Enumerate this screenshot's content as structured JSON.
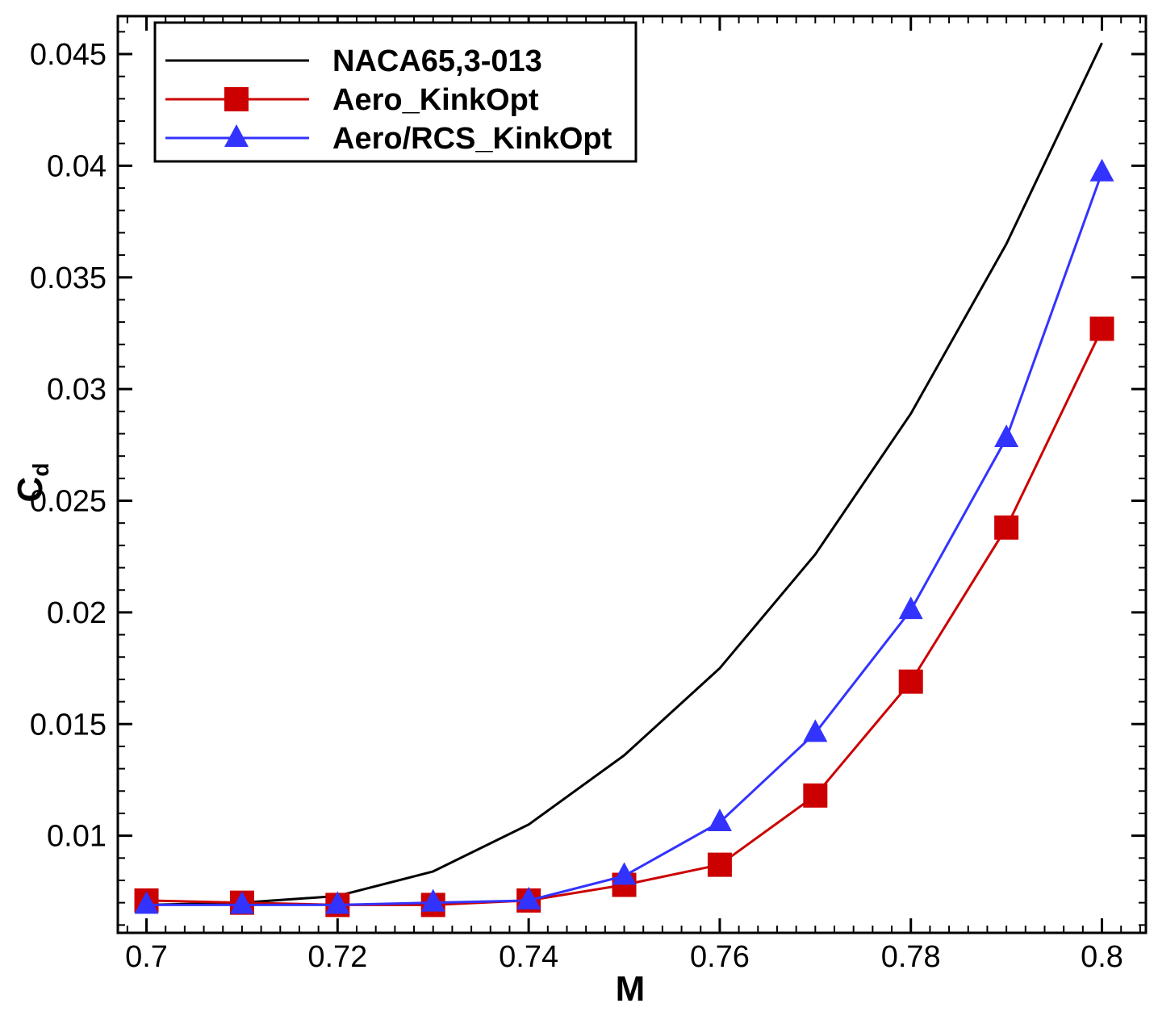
{
  "chart_data": {
    "type": "line",
    "title": "",
    "xlabel": "M",
    "ylabel_main": "C",
    "ylabel_sub": "d",
    "xlim": [
      0.697,
      0.8046
    ],
    "ylim": [
      0.00565,
      0.0467
    ],
    "xticks_major": [
      0.7,
      0.72,
      0.74,
      0.76,
      0.78,
      0.8
    ],
    "xtick_labels": [
      "0.7",
      "0.72",
      "0.74",
      "0.76",
      "0.78",
      "0.8"
    ],
    "yticks_major": [
      0.01,
      0.015,
      0.02,
      0.025,
      0.03,
      0.035,
      0.04,
      0.045
    ],
    "ytick_labels": [
      "0.01",
      "0.015",
      "0.02",
      "0.025",
      "0.03",
      "0.035",
      "0.04",
      "0.045"
    ],
    "x_minor_step": 0.002,
    "y_minor_step": 0.001,
    "grid": false,
    "legend_position": "top-left",
    "series": [
      {
        "name": "NACA65,3-013",
        "color": "#000000",
        "marker": "none",
        "x": [
          0.7,
          0.71,
          0.72,
          0.73,
          0.74,
          0.75,
          0.76,
          0.77,
          0.78,
          0.79,
          0.8
        ],
        "values": [
          0.0069,
          0.007,
          0.0073,
          0.0084,
          0.0105,
          0.0136,
          0.0175,
          0.0226,
          0.0289,
          0.0365,
          0.0455
        ]
      },
      {
        "name": "Aero_KinkOpt",
        "color": "#cc0000",
        "marker": "square",
        "x": [
          0.7,
          0.71,
          0.72,
          0.73,
          0.74,
          0.75,
          0.76,
          0.77,
          0.78,
          0.79,
          0.8
        ],
        "values": [
          0.0071,
          0.007,
          0.0069,
          0.0069,
          0.0071,
          0.0078,
          0.0087,
          0.0118,
          0.0169,
          0.0238,
          0.0327
        ]
      },
      {
        "name": "Aero/RCS_KinkOpt",
        "color": "#3333ff",
        "marker": "triangle",
        "x": [
          0.7,
          0.71,
          0.72,
          0.73,
          0.74,
          0.75,
          0.76,
          0.77,
          0.78,
          0.79,
          0.8
        ],
        "values": [
          0.0069,
          0.0069,
          0.0069,
          0.007,
          0.0071,
          0.0082,
          0.0106,
          0.0146,
          0.0201,
          0.0278,
          0.0397
        ]
      }
    ]
  }
}
